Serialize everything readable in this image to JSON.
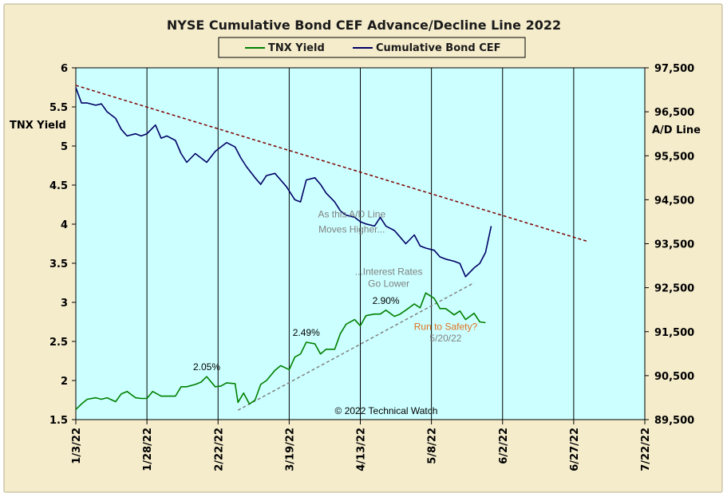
{
  "chart_data": {
    "type": "line",
    "title": "NYSE Cumulative  Bond CEF Advance/Decline  Line 2022",
    "legend": {
      "placement": "top-center",
      "entries": [
        "TNX Yield",
        "Cumulative Bond CEF"
      ]
    },
    "x_tick_labels": [
      "1/3/22",
      "1/28/22",
      "2/22/22",
      "3/19/22",
      "4/13/22",
      "5/8/22",
      "6/2/22",
      "6/27/22",
      "7/22/22"
    ],
    "x_range": [
      "1/3/22",
      "7/22/22"
    ],
    "left_axis": {
      "label": "TNX Yield",
      "range": [
        1.5,
        6
      ],
      "ticks": [
        "1.5",
        "2",
        "2.5",
        "3",
        "3.5",
        "4",
        "4.5",
        "5",
        "5.5",
        "6"
      ]
    },
    "right_axis": {
      "label": "A/D Line",
      "range": [
        89500,
        97500
      ],
      "ticks": [
        "89,500",
        "90,500",
        "91,500",
        "92,500",
        "93,500",
        "94,500",
        "95,500",
        "96,500",
        "97,500"
      ]
    },
    "grid": "vertical-only",
    "colors": {
      "plot_bg": "#ccffff",
      "frame_bg": "#f5eccc",
      "tnx": "#008000",
      "ad": "#000066",
      "trend_ad": "#800000",
      "trend_tnx": "#808080",
      "anno_gray": "#808080",
      "anno_orange": "#e07020"
    },
    "series": [
      {
        "name": "TNX Yield",
        "axis": "left",
        "points": [
          [
            "2022-01-03",
            1.63
          ],
          [
            "2022-01-05",
            1.7
          ],
          [
            "2022-01-07",
            1.76
          ],
          [
            "2022-01-10",
            1.78
          ],
          [
            "2022-01-12",
            1.76
          ],
          [
            "2022-01-14",
            1.78
          ],
          [
            "2022-01-17",
            1.73
          ],
          [
            "2022-01-19",
            1.83
          ],
          [
            "2022-01-21",
            1.86
          ],
          [
            "2022-01-24",
            1.78
          ],
          [
            "2022-01-26",
            1.77
          ],
          [
            "2022-01-28",
            1.77
          ],
          [
            "2022-01-30",
            1.86
          ],
          [
            "2022-02-02",
            1.8
          ],
          [
            "2022-02-04",
            1.8
          ],
          [
            "2022-02-07",
            1.8
          ],
          [
            "2022-02-09",
            1.92
          ],
          [
            "2022-02-11",
            1.92
          ],
          [
            "2022-02-14",
            1.95
          ],
          [
            "2022-02-16",
            1.98
          ],
          [
            "2022-02-18",
            2.05
          ],
          [
            "2022-02-21",
            1.92
          ],
          [
            "2022-02-23",
            1.93
          ],
          [
            "2022-02-25",
            1.97
          ],
          [
            "2022-02-28",
            1.96
          ],
          [
            "2022-03-01",
            1.72
          ],
          [
            "2022-03-03",
            1.84
          ],
          [
            "2022-03-05",
            1.7
          ],
          [
            "2022-03-07",
            1.75
          ],
          [
            "2022-03-09",
            1.95
          ],
          [
            "2022-03-11",
            2.0
          ],
          [
            "2022-03-14",
            2.13
          ],
          [
            "2022-03-16",
            2.19
          ],
          [
            "2022-03-19",
            2.14
          ],
          [
            "2022-03-21",
            2.3
          ],
          [
            "2022-03-23",
            2.34
          ],
          [
            "2022-03-25",
            2.49
          ],
          [
            "2022-03-28",
            2.47
          ],
          [
            "2022-03-30",
            2.34
          ],
          [
            "2022-04-01",
            2.4
          ],
          [
            "2022-04-04",
            2.4
          ],
          [
            "2022-04-06",
            2.6
          ],
          [
            "2022-04-08",
            2.72
          ],
          [
            "2022-04-11",
            2.78
          ],
          [
            "2022-04-13",
            2.7
          ],
          [
            "2022-04-15",
            2.83
          ],
          [
            "2022-04-18",
            2.85
          ],
          [
            "2022-04-20",
            2.85
          ],
          [
            "2022-04-22",
            2.9
          ],
          [
            "2022-04-25",
            2.82
          ],
          [
            "2022-04-27",
            2.85
          ],
          [
            "2022-04-29",
            2.9
          ],
          [
            "2022-05-02",
            2.98
          ],
          [
            "2022-05-04",
            2.93
          ],
          [
            "2022-05-06",
            3.12
          ],
          [
            "2022-05-09",
            3.05
          ],
          [
            "2022-05-11",
            2.92
          ],
          [
            "2022-05-13",
            2.92
          ],
          [
            "2022-05-16",
            2.84
          ],
          [
            "2022-05-18",
            2.89
          ],
          [
            "2022-05-20",
            2.78
          ],
          [
            "2022-05-23",
            2.86
          ],
          [
            "2022-05-25",
            2.75
          ],
          [
            "2022-05-27",
            2.74
          ]
        ]
      },
      {
        "name": "Cumulative Bond CEF",
        "axis": "right",
        "points": [
          [
            "2022-01-03",
            97050
          ],
          [
            "2022-01-05",
            96700
          ],
          [
            "2022-01-07",
            96700
          ],
          [
            "2022-01-10",
            96650
          ],
          [
            "2022-01-12",
            96680
          ],
          [
            "2022-01-14",
            96500
          ],
          [
            "2022-01-17",
            96350
          ],
          [
            "2022-01-19",
            96100
          ],
          [
            "2022-01-21",
            95950
          ],
          [
            "2022-01-24",
            96000
          ],
          [
            "2022-01-26",
            95950
          ],
          [
            "2022-01-28",
            96000
          ],
          [
            "2022-01-31",
            96200
          ],
          [
            "2022-02-02",
            95900
          ],
          [
            "2022-02-04",
            95950
          ],
          [
            "2022-02-07",
            95850
          ],
          [
            "2022-02-09",
            95550
          ],
          [
            "2022-02-11",
            95350
          ],
          [
            "2022-02-14",
            95550
          ],
          [
            "2022-02-16",
            95450
          ],
          [
            "2022-02-18",
            95350
          ],
          [
            "2022-02-21",
            95600
          ],
          [
            "2022-02-23",
            95700
          ],
          [
            "2022-02-25",
            95800
          ],
          [
            "2022-02-28",
            95700
          ],
          [
            "2022-03-02",
            95450
          ],
          [
            "2022-03-04",
            95250
          ],
          [
            "2022-03-07",
            95000
          ],
          [
            "2022-03-09",
            94850
          ],
          [
            "2022-03-11",
            95050
          ],
          [
            "2022-03-14",
            95100
          ],
          [
            "2022-03-16",
            94950
          ],
          [
            "2022-03-18",
            94800
          ],
          [
            "2022-03-21",
            94500
          ],
          [
            "2022-03-23",
            94450
          ],
          [
            "2022-03-25",
            94950
          ],
          [
            "2022-03-28",
            95000
          ],
          [
            "2022-03-30",
            94850
          ],
          [
            "2022-04-01",
            94650
          ],
          [
            "2022-04-04",
            94450
          ],
          [
            "2022-04-06",
            94250
          ],
          [
            "2022-04-08",
            94150
          ],
          [
            "2022-04-11",
            94100
          ],
          [
            "2022-04-13",
            94000
          ],
          [
            "2022-04-15",
            93950
          ],
          [
            "2022-04-18",
            93900
          ],
          [
            "2022-04-20",
            94100
          ],
          [
            "2022-04-22",
            93900
          ],
          [
            "2022-04-25",
            93800
          ],
          [
            "2022-04-27",
            93650
          ],
          [
            "2022-04-29",
            93500
          ],
          [
            "2022-05-02",
            93700
          ],
          [
            "2022-05-04",
            93450
          ],
          [
            "2022-05-06",
            93400
          ],
          [
            "2022-05-09",
            93350
          ],
          [
            "2022-05-11",
            93200
          ],
          [
            "2022-05-13",
            93150
          ],
          [
            "2022-05-16",
            93100
          ],
          [
            "2022-05-18",
            93050
          ],
          [
            "2022-05-20",
            92750
          ],
          [
            "2022-05-23",
            92950
          ],
          [
            "2022-05-25",
            93050
          ],
          [
            "2022-05-27",
            93300
          ],
          [
            "2022-05-29",
            93900
          ]
        ]
      }
    ],
    "trendlines": [
      {
        "axis": "right",
        "style": "dashed",
        "color": "#800000",
        "from": [
          "2022-01-03",
          97100
        ],
        "to": [
          "2022-07-02",
          93550
        ]
      },
      {
        "axis": "left",
        "style": "dashed",
        "color": "#808080",
        "from": [
          "2022-03-01",
          1.62
        ],
        "to": [
          "2022-05-23",
          3.25
        ]
      }
    ],
    "annotations": [
      {
        "text": "2.05%",
        "at": [
          "2022-02-18",
          2.05
        ],
        "color": "#000000"
      },
      {
        "text": "2.49%",
        "at": [
          "2022-03-25",
          2.49
        ],
        "color": "#000000"
      },
      {
        "text": "2.90%",
        "at": [
          "2022-04-22",
          2.9
        ],
        "color": "#000000"
      },
      {
        "text": "As this A/D Line",
        "at": [
          "2022-04-10",
          94100
        ],
        "axis": "right",
        "color": "#808080"
      },
      {
        "text": "Moves Higher...",
        "at": [
          "2022-04-10",
          93750
        ],
        "axis": "right",
        "color": "#808080"
      },
      {
        "text": "...Interest Rates",
        "at": [
          "2022-04-23",
          3.35
        ],
        "color": "#808080"
      },
      {
        "text": "Go Lower",
        "at": [
          "2022-04-23",
          3.2
        ],
        "color": "#808080"
      },
      {
        "text": "Run to Safety?",
        "at": [
          "2022-05-13",
          2.65
        ],
        "color": "#e07020"
      },
      {
        "text": "5/20/22",
        "at": [
          "2022-05-13",
          2.5
        ],
        "color": "#808080"
      }
    ],
    "copyright": "© 2022 Technical  Watch"
  }
}
